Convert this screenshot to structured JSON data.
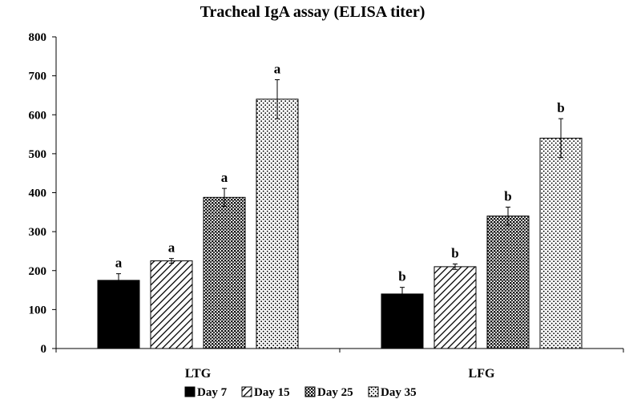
{
  "chart_data": {
    "type": "bar",
    "title": "Tracheal IgA assay (ELISA titer)",
    "xlabel": "",
    "ylabel": "",
    "ylim": [
      0,
      800
    ],
    "yticks": [
      0,
      100,
      200,
      300,
      400,
      500,
      600,
      700,
      800
    ],
    "grid": false,
    "legend_position": "bottom",
    "categories": [
      "LTG",
      "LFG"
    ],
    "series": [
      {
        "name": "Day 7",
        "pattern": "solid",
        "values": [
          175,
          140
        ],
        "errors": [
          17,
          17
        ],
        "labels": [
          "a",
          "b"
        ]
      },
      {
        "name": "Day 15",
        "pattern": "diagonal",
        "values": [
          225,
          210
        ],
        "errors": [
          6,
          7
        ],
        "labels": [
          "a",
          "b"
        ]
      },
      {
        "name": "Day 25",
        "pattern": "crosshatch",
        "values": [
          388,
          340
        ],
        "errors": [
          23,
          23
        ],
        "labels": [
          "a",
          "b"
        ]
      },
      {
        "name": "Day 35",
        "pattern": "dotted",
        "values": [
          640,
          540
        ],
        "errors": [
          50,
          50
        ],
        "labels": [
          "a",
          "b"
        ]
      }
    ]
  }
}
